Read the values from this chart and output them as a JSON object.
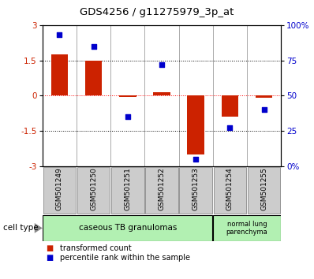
{
  "title": "GDS4256 / g11275979_3p_at",
  "samples": [
    "GSM501249",
    "GSM501250",
    "GSM501251",
    "GSM501252",
    "GSM501253",
    "GSM501254",
    "GSM501255"
  ],
  "transformed_count": [
    1.75,
    1.5,
    -0.05,
    0.15,
    -2.5,
    -0.9,
    -0.1
  ],
  "percentile_rank": [
    93,
    85,
    35,
    72,
    5,
    27,
    40
  ],
  "ylim_left": [
    -3,
    3
  ],
  "ylim_right": [
    0,
    100
  ],
  "yticks_left": [
    -3,
    -1.5,
    0,
    1.5,
    3
  ],
  "yticks_right": [
    0,
    25,
    50,
    75,
    100
  ],
  "yticklabels_right": [
    "0%",
    "25",
    "50",
    "75",
    "100%"
  ],
  "bar_color": "#cc2200",
  "square_color": "#0000cc",
  "group1_count": 5,
  "group2_count": 2,
  "group1_label": "caseous TB granulomas",
  "group2_label": "normal lung\nparenchyma",
  "group_color": "#b2f0b2",
  "cell_type_label": "cell type",
  "legend_label_red": "transformed count",
  "legend_label_blue": "percentile rank within the sample",
  "bg_color": "#ffffff",
  "bar_width": 0.5,
  "square_size": 25,
  "sample_box_color": "#cccccc",
  "sample_box_edge": "#888888"
}
